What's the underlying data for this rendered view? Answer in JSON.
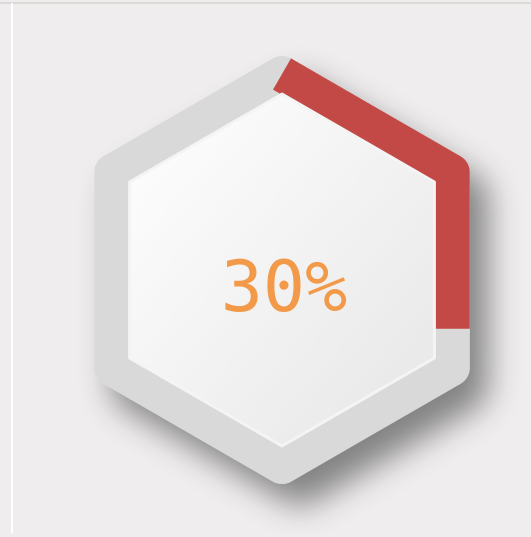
{
  "progress": {
    "value": 30,
    "label": "30%"
  }
}
